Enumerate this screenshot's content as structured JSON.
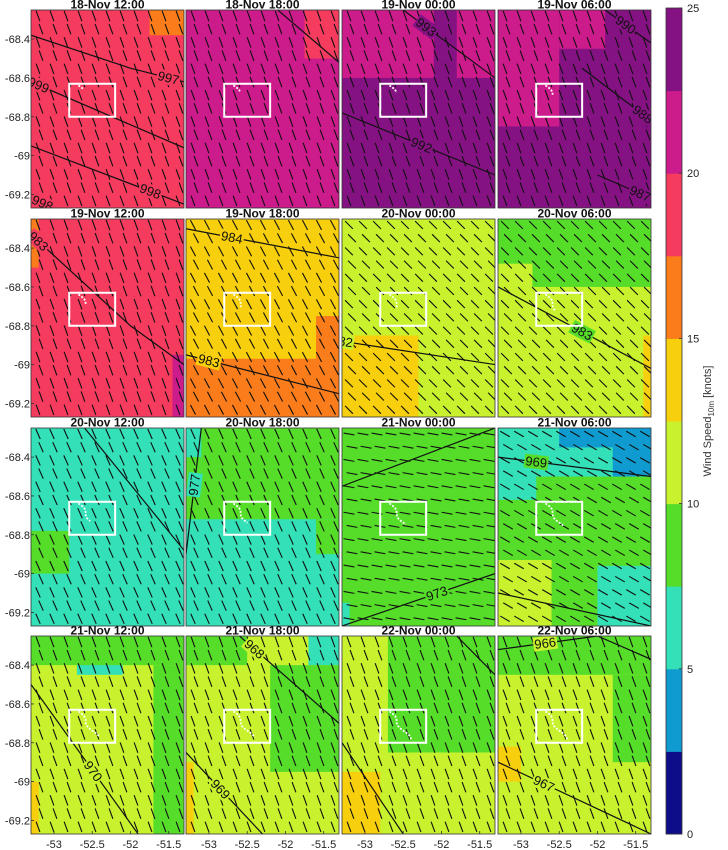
{
  "chart_data": {
    "type": "heatmap",
    "colorbar": {
      "label": "Wind Speed",
      "subscript": "10m",
      "unit": "[knots]",
      "ticks": [
        0,
        5,
        10,
        15,
        20,
        25
      ],
      "range": [
        0,
        25
      ],
      "colors": [
        "#0d0d8a",
        "#109bd0",
        "#33e0b8",
        "#56dd2a",
        "#c8f22d",
        "#f7cf0c",
        "#fb7c1a",
        "#f53b5e",
        "#cc1b8b",
        "#851282"
      ]
    },
    "x_ticks": [
      "-53",
      "-52.5",
      "-52",
      "-51.5"
    ],
    "x_tick_values": [
      -53,
      -52.5,
      -52,
      -51.5
    ],
    "y_ticks": [
      "-68.4",
      "-68.6",
      "-68.8",
      "-69",
      "-69.2"
    ],
    "y_tick_values": [
      -68.4,
      -68.6,
      -68.8,
      -69,
      -69.2
    ],
    "x_range": [
      -53.3,
      -51.3
    ],
    "y_range": [
      -68.25,
      -69.27
    ],
    "study_box": {
      "lon": [
        -52.8,
        -52.2
      ],
      "lat": [
        -68.63,
        -68.8
      ]
    },
    "panels": [
      {
        "title": "18-Nov 12:00",
        "base_color": 7,
        "patches": [
          {
            "lon": [
              -51.75,
              -51.3
            ],
            "lat": [
              -68.25,
              -68.38
            ],
            "color": 6
          }
        ],
        "barb_angle": 70,
        "contours": [
          {
            "label": "997",
            "points": [
              [
                -53.3,
                -68.38
              ],
              [
                -52.0,
                -68.55
              ],
              [
                -51.3,
                -68.62
              ]
            ],
            "label_at": 0.9
          },
          {
            "label": "999",
            "points": [
              [
                -53.3,
                -68.62
              ],
              [
                -51.3,
                -68.96
              ]
            ],
            "label_at": 0.05
          },
          {
            "label": "998",
            "points": [
              [
                -53.3,
                -68.95
              ],
              [
                -51.3,
                -69.25
              ]
            ],
            "label_at": 0.78
          },
          {
            "label": "998",
            "points": [
              [
                -53.3,
                -69.22
              ],
              [
                -53.0,
                -69.27
              ]
            ],
            "label_at": 0.5
          }
        ]
      },
      {
        "title": "18-Nov 18:00",
        "base_color": 8,
        "patches": [
          {
            "lon": [
              -51.75,
              -51.3
            ],
            "lat": [
              -68.25,
              -68.5
            ],
            "color": 7
          }
        ],
        "barb_angle": 70,
        "contours": [
          {
            "label": "",
            "points": [
              [
                -52.1,
                -68.25
              ],
              [
                -51.3,
                -68.52
              ]
            ],
            "label_at": 0.5
          }
        ]
      },
      {
        "title": "19-Nov 00:00",
        "base_color": 9,
        "patches": [
          {
            "lon": [
              -53.3,
              -52.1
            ],
            "lat": [
              -68.25,
              -68.6
            ],
            "color": 8
          },
          {
            "lon": [
              -51.8,
              -51.3
            ],
            "lat": [
              -68.25,
              -68.6
            ],
            "color": 8
          }
        ],
        "barb_angle": 70,
        "contours": [
          {
            "label": "993",
            "points": [
              [
                -52.5,
                -68.25
              ],
              [
                -51.3,
                -68.6
              ]
            ],
            "label_at": 0.25
          },
          {
            "label": "992",
            "points": [
              [
                -53.3,
                -68.78
              ],
              [
                -51.3,
                -69.1
              ]
            ],
            "label_at": 0.52
          }
        ]
      },
      {
        "title": "19-Nov 06:00",
        "base_color": 9,
        "patches": [
          {
            "lon": [
              -53.3,
              -52.5
            ],
            "lat": [
              -68.25,
              -68.85
            ],
            "color": 8
          },
          {
            "lon": [
              -52.5,
              -51.9
            ],
            "lat": [
              -68.25,
              -68.45
            ],
            "color": 8
          }
        ],
        "barb_angle": 70,
        "contours": [
          {
            "label": "990",
            "points": [
              [
                -51.9,
                -68.25
              ],
              [
                -51.3,
                -68.42
              ]
            ],
            "label_at": 0.45
          },
          {
            "label": "988",
            "points": [
              [
                -52.2,
                -68.55
              ],
              [
                -51.3,
                -68.82
              ]
            ],
            "label_at": 0.88
          },
          {
            "label": "987",
            "points": [
              [
                -52.0,
                -69.1
              ],
              [
                -51.3,
                -69.22
              ]
            ],
            "label_at": 0.8
          }
        ]
      },
      {
        "title": "19-Nov 12:00",
        "base_color": 7,
        "patches": [
          {
            "lon": [
              -53.3,
              -53.2
            ],
            "lat": [
              -68.25,
              -68.5
            ],
            "color": 6
          },
          {
            "lon": [
              -51.45,
              -51.3
            ],
            "lat": [
              -68.95,
              -69.27
            ],
            "color": 8
          }
        ],
        "barb_angle": 70,
        "contours": [
          {
            "label": "983",
            "points": [
              [
                -53.3,
                -68.33
              ],
              [
                -52.0,
                -68.8
              ],
              [
                -51.3,
                -69.0
              ]
            ],
            "label_at": 0.05
          }
        ]
      },
      {
        "title": "19-Nov 18:00",
        "base_color": 5,
        "patches": [
          {
            "lon": [
              -53.3,
              -51.3
            ],
            "lat": [
              -68.97,
              -69.27
            ],
            "color": 6
          },
          {
            "lon": [
              -51.6,
              -51.3
            ],
            "lat": [
              -68.75,
              -68.97
            ],
            "color": 6
          }
        ],
        "barb_angle": 62,
        "contours": [
          {
            "label": "984",
            "points": [
              [
                -53.3,
                -68.3
              ],
              [
                -51.3,
                -68.45
              ]
            ],
            "label_at": 0.3
          },
          {
            "label": "983",
            "points": [
              [
                -53.3,
                -68.95
              ],
              [
                -51.3,
                -69.15
              ]
            ],
            "label_at": 0.15
          }
        ]
      },
      {
        "title": "20-Nov 00:00",
        "base_color": 4,
        "patches": [
          {
            "lon": [
              -53.3,
              -52.3
            ],
            "lat": [
              -68.85,
              -69.27
            ],
            "color": 5
          }
        ],
        "barb_angle": 45,
        "contours": [
          {
            "label": "982",
            "points": [
              [
                -53.3,
                -68.88
              ],
              [
                -51.3,
                -69.0
              ]
            ],
            "label_at": 0.0
          }
        ]
      },
      {
        "title": "20-Nov 06:00",
        "base_color": 3,
        "patches": [
          {
            "lon": [
              -53.3,
              -51.3
            ],
            "lat": [
              -68.6,
              -69.27
            ],
            "color": 4
          },
          {
            "lon": [
              -53.3,
              -52.85
            ],
            "lat": [
              -68.48,
              -68.6
            ],
            "color": 4
          },
          {
            "lon": [
              -51.4,
              -51.3
            ],
            "lat": [
              -68.85,
              -69.27
            ],
            "color": 5
          }
        ],
        "barb_angle": 45,
        "contours": [
          {
            "label": "983",
            "points": [
              [
                -53.3,
                -68.6
              ],
              [
                -51.3,
                -69.02
              ]
            ],
            "label_at": 0.55
          }
        ]
      },
      {
        "title": "20-Nov 12:00",
        "base_color": 2,
        "patches": [
          {
            "lon": [
              -53.3,
              -52.8
            ],
            "lat": [
              -68.78,
              -69.0
            ],
            "color": 3
          }
        ],
        "barb_angle": 66,
        "contours": [
          {
            "label": "",
            "points": [
              [
                -52.6,
                -68.25
              ],
              [
                -51.3,
                -68.88
              ]
            ],
            "label_at": 0.5
          }
        ]
      },
      {
        "title": "20-Nov 18:00",
        "base_color": 2,
        "patches": [
          {
            "lon": [
              -53.1,
              -51.3
            ],
            "lat": [
              -68.25,
              -68.72
            ],
            "color": 3
          },
          {
            "lon": [
              -53.3,
              -53.1
            ],
            "lat": [
              -68.4,
              -68.72
            ],
            "color": 3
          },
          {
            "lon": [
              -51.6,
              -51.3
            ],
            "lat": [
              -68.72,
              -68.9
            ],
            "color": 3
          }
        ],
        "barb_angle": 66,
        "contours": [
          {
            "label": "977",
            "points": [
              [
                -53.1,
                -68.25
              ],
              [
                -53.3,
                -68.9
              ]
            ],
            "label_at": 0.45
          }
        ]
      },
      {
        "title": "21-Nov 00:00",
        "base_color": 3,
        "patches": [
          {
            "lon": [
              -53.3,
              -53.2
            ],
            "lat": [
              -69.15,
              -69.27
            ],
            "color": 2
          }
        ],
        "barb_angle": 10,
        "contours": [
          {
            "label": "",
            "points": [
              [
                -53.3,
                -68.55
              ],
              [
                -51.3,
                -68.25
              ]
            ],
            "label_at": 0.5
          },
          {
            "label": "973",
            "points": [
              [
                -53.3,
                -69.27
              ],
              [
                -51.3,
                -69.0
              ]
            ],
            "label_at": 0.62
          }
        ]
      },
      {
        "title": "21-Nov 06:00",
        "base_color": 3,
        "patches": [
          {
            "lon": [
              -53.3,
              -52.8
            ],
            "lat": [
              -68.25,
              -68.62
            ],
            "color": 2
          },
          {
            "lon": [
              -52.8,
              -51.3
            ],
            "lat": [
              -68.25,
              -68.5
            ],
            "color": 2
          },
          {
            "lon": [
              -52.5,
              -51.3
            ],
            "lat": [
              -68.25,
              -68.35
            ],
            "color": 1
          },
          {
            "lon": [
              -51.8,
              -51.3
            ],
            "lat": [
              -68.35,
              -68.5
            ],
            "color": 1
          },
          {
            "lon": [
              -53.3,
              -52.6
            ],
            "lat": [
              -68.93,
              -69.27
            ],
            "color": 4
          },
          {
            "lon": [
              -52.0,
              -51.3
            ],
            "lat": [
              -68.96,
              -69.27
            ],
            "color": 2
          }
        ],
        "barb_angle": 30,
        "contours": [
          {
            "label": "969",
            "points": [
              [
                -53.3,
                -68.4
              ],
              [
                -51.3,
                -68.5
              ]
            ],
            "label_at": 0.25
          },
          {
            "label": "",
            "points": [
              [
                -53.3,
                -69.1
              ],
              [
                -51.3,
                -69.27
              ]
            ],
            "label_at": 0.5
          }
        ]
      },
      {
        "title": "21-Nov 12:00",
        "base_color": 4,
        "patches": [
          {
            "lon": [
              -52.7,
              -52.1
            ],
            "lat": [
              -68.25,
              -68.45
            ],
            "color": 2
          },
          {
            "lon": [
              -53.3,
              -51.3
            ],
            "lat": [
              -68.25,
              -68.4
            ],
            "color": 3
          },
          {
            "lon": [
              -51.7,
              -51.3
            ],
            "lat": [
              -68.4,
              -69.27
            ],
            "color": 3
          },
          {
            "lon": [
              -53.3,
              -53.2
            ],
            "lat": [
              -69.0,
              -69.27
            ],
            "color": 5
          }
        ],
        "barb_angle": 70,
        "contours": [
          {
            "label": "970",
            "points": [
              [
                -53.3,
                -68.5
              ],
              [
                -51.9,
                -69.27
              ]
            ],
            "label_at": 0.58
          }
        ]
      },
      {
        "title": "21-Nov 18:00",
        "base_color": 4,
        "patches": [
          {
            "lon": [
              -51.7,
              -51.3
            ],
            "lat": [
              -68.25,
              -68.4
            ],
            "color": 2
          },
          {
            "lon": [
              -53.3,
              -52.5
            ],
            "lat": [
              -68.25,
              -68.4
            ],
            "color": 3
          },
          {
            "lon": [
              -52.2,
              -51.3
            ],
            "lat": [
              -68.4,
              -68.95
            ],
            "color": 3
          },
          {
            "lon": [
              -53.3,
              -53.2
            ],
            "lat": [
              -68.9,
              -69.27
            ],
            "color": 5
          }
        ],
        "barb_angle": 70,
        "contours": [
          {
            "label": "968",
            "points": [
              [
                -52.6,
                -68.25
              ],
              [
                -51.3,
                -68.7
              ]
            ],
            "label_at": 0.15
          },
          {
            "label": "969",
            "points": [
              [
                -53.3,
                -68.85
              ],
              [
                -52.3,
                -69.27
              ]
            ],
            "label_at": 0.45
          }
        ]
      },
      {
        "title": "22-Nov 00:00",
        "base_color": 4,
        "patches": [
          {
            "lon": [
              -52.7,
              -51.3
            ],
            "lat": [
              -68.25,
              -68.85
            ],
            "color": 3
          },
          {
            "lon": [
              -53.3,
              -52.8
            ],
            "lat": [
              -68.95,
              -69.27
            ],
            "color": 5
          }
        ],
        "barb_angle": 70,
        "contours": [
          {
            "label": "",
            "points": [
              [
                -51.8,
                -68.25
              ],
              [
                -51.3,
                -68.45
              ]
            ],
            "label_at": 0.5
          },
          {
            "label": "",
            "points": [
              [
                -53.3,
                -68.8
              ],
              [
                -52.5,
                -69.27
              ]
            ],
            "label_at": 0.5
          }
        ]
      },
      {
        "title": "22-Nov 06:00",
        "base_color": 4,
        "patches": [
          {
            "lon": [
              -53.3,
              -51.3
            ],
            "lat": [
              -68.25,
              -68.45
            ],
            "color": 3
          },
          {
            "lon": [
              -51.8,
              -51.3
            ],
            "lat": [
              -68.45,
              -68.9
            ],
            "color": 3
          },
          {
            "lon": [
              -53.3,
              -53.0
            ],
            "lat": [
              -68.82,
              -69.0
            ],
            "color": 5
          }
        ],
        "barb_angle": 70,
        "contours": [
          {
            "label": "966",
            "points": [
              [
                -53.3,
                -68.32
              ],
              [
                -52.0,
                -68.25
              ],
              [
                -51.3,
                -68.37
              ]
            ],
            "label_at": 0.3
          },
          {
            "label": "967",
            "points": [
              [
                -53.3,
                -68.9
              ],
              [
                -51.3,
                -69.27
              ]
            ],
            "label_at": 0.3
          }
        ]
      }
    ]
  }
}
